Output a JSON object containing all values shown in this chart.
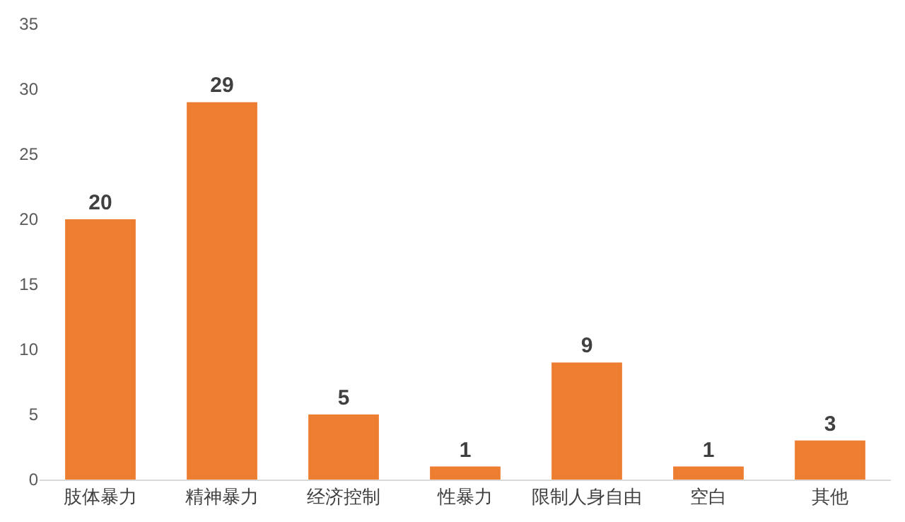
{
  "chart_data": {
    "type": "bar",
    "categories": [
      "肢体暴力",
      "精神暴力",
      "经济控制",
      "性暴力",
      "限制人身自由",
      "空白",
      "其他"
    ],
    "values": [
      20,
      29,
      5,
      1,
      9,
      1,
      3
    ],
    "color": "#ed7d31",
    "ylim": [
      0,
      35
    ],
    "yticks": [
      0,
      5,
      10,
      15,
      20,
      25,
      30,
      35
    ],
    "data_labels": true
  }
}
